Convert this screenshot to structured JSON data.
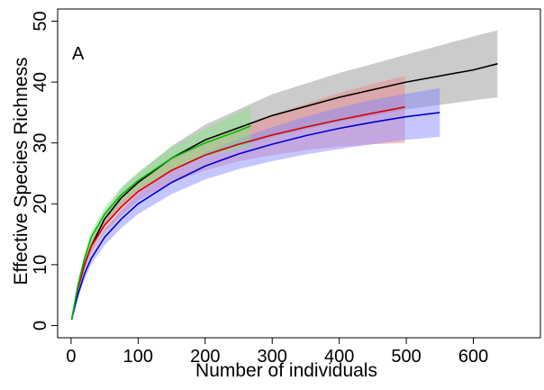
{
  "chart_data": {
    "type": "line",
    "panel_label": "A",
    "xlabel": "Number of individuals",
    "ylabel": "Effective Species Richness",
    "xlim": [
      -20,
      700
    ],
    "ylim": [
      -2,
      52
    ],
    "x_ticks": [
      0,
      100,
      200,
      300,
      400,
      500,
      600
    ],
    "y_ticks": [
      0,
      10,
      20,
      30,
      40,
      50
    ],
    "grid": false,
    "legend": "none",
    "series": [
      {
        "color": "#000000",
        "band_color": "#8c8c8c",
        "x": [
          1,
          10,
          20,
          30,
          50,
          75,
          100,
          150,
          200,
          270,
          300,
          400,
          500,
          600,
          636
        ],
        "y": [
          1,
          6,
          10,
          13,
          17.5,
          21,
          23.5,
          27.5,
          30.5,
          33.3,
          34.5,
          37.5,
          40,
          42,
          43
        ],
        "y_low": [
          1,
          5.6,
          9.3,
          12,
          16.3,
          19.5,
          22,
          25.5,
          28,
          30,
          31,
          33.5,
          35.5,
          37,
          37.5
        ],
        "y_high": [
          1,
          6.4,
          10.7,
          14,
          18.7,
          22.5,
          25,
          29.5,
          33,
          36.5,
          38,
          41.5,
          44.5,
          47.5,
          48.5
        ]
      },
      {
        "color": "#d40000",
        "band_color": "#f08080",
        "x": [
          1,
          10,
          20,
          30,
          50,
          75,
          100,
          150,
          200,
          250,
          300,
          350,
          400,
          450,
          498
        ],
        "y": [
          1,
          6,
          10,
          13,
          16.5,
          19.5,
          22,
          25.5,
          28,
          29.8,
          31.3,
          32.6,
          33.8,
          34.9,
          35.9
        ],
        "y_low": [
          1,
          5.5,
          9.2,
          12,
          15.3,
          18,
          20.5,
          23.5,
          25.5,
          27,
          28,
          28.8,
          29.4,
          29.8,
          30
        ],
        "y_high": [
          1,
          6.5,
          10.8,
          14,
          17.7,
          21,
          23.5,
          27.5,
          30.5,
          32.6,
          34.6,
          36.4,
          38.2,
          39.7,
          41
        ]
      },
      {
        "color": "#0000cc",
        "band_color": "#8080ff",
        "x": [
          1,
          10,
          20,
          30,
          50,
          75,
          100,
          150,
          200,
          250,
          300,
          350,
          400,
          450,
          500,
          550
        ],
        "y": [
          1,
          5,
          8.5,
          11,
          14.5,
          17.5,
          20,
          23.5,
          26.2,
          28.2,
          29.8,
          31.2,
          32.4,
          33.4,
          34.3,
          35
        ],
        "y_low": [
          1,
          4.5,
          7.5,
          10,
          13.2,
          16,
          18.3,
          21.6,
          24,
          25.7,
          27,
          28.1,
          29,
          29.8,
          30.5,
          31
        ],
        "y_high": [
          1,
          5.5,
          9.5,
          12,
          15.8,
          19,
          21.7,
          25.4,
          28.4,
          30.7,
          32.6,
          34.3,
          35.8,
          37.1,
          38.1,
          39
        ]
      },
      {
        "color": "#00bb00",
        "band_color": "#80e680",
        "x": [
          1,
          10,
          20,
          30,
          50,
          75,
          100,
          150,
          200,
          250,
          268
        ],
        "y": [
          1,
          6.5,
          11,
          14.5,
          18.3,
          21.5,
          23.8,
          27.5,
          30,
          32,
          32.8
        ],
        "y_low": [
          1,
          6,
          10.2,
          13.5,
          17.2,
          20.2,
          22.4,
          25.6,
          27.7,
          29,
          29.5
        ],
        "y_high": [
          1,
          7,
          11.8,
          15.5,
          19.4,
          22.8,
          25.2,
          29.4,
          32.3,
          35,
          36
        ]
      }
    ]
  }
}
